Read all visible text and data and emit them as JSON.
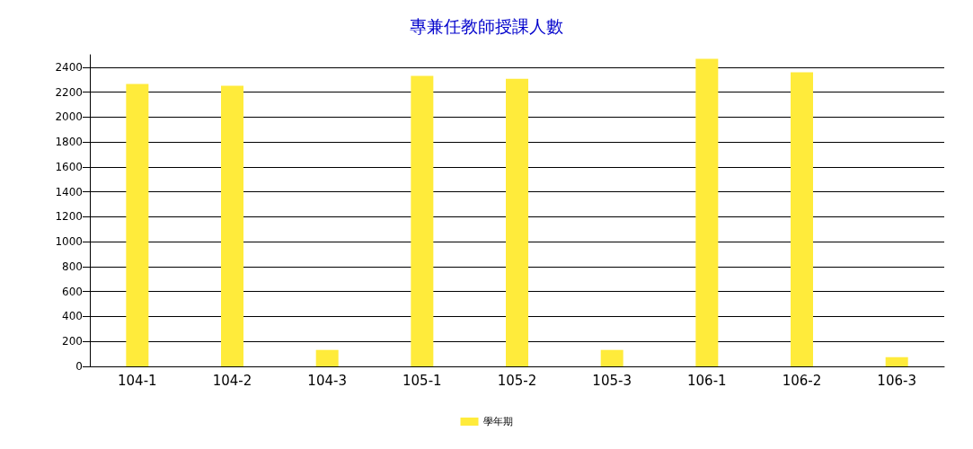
{
  "chart_data": {
    "type": "bar",
    "title": "專兼任教師授課人數",
    "categories": [
      "104-1",
      "104-2",
      "104-3",
      "105-1",
      "105-2",
      "105-3",
      "106-1",
      "106-2",
      "106-3"
    ],
    "series": [
      {
        "name": "學年期",
        "color": "#ffeb3b",
        "values": [
          2265,
          2251,
          132,
          2330,
          2308,
          132,
          2467,
          2359,
          74
        ]
      }
    ],
    "ylim": [
      0,
      2500
    ],
    "yticks": [
      0,
      200,
      400,
      600,
      800,
      1000,
      1200,
      1400,
      1600,
      1800,
      2000,
      2200,
      2400
    ],
    "grid": "y",
    "legend": "bottom"
  }
}
